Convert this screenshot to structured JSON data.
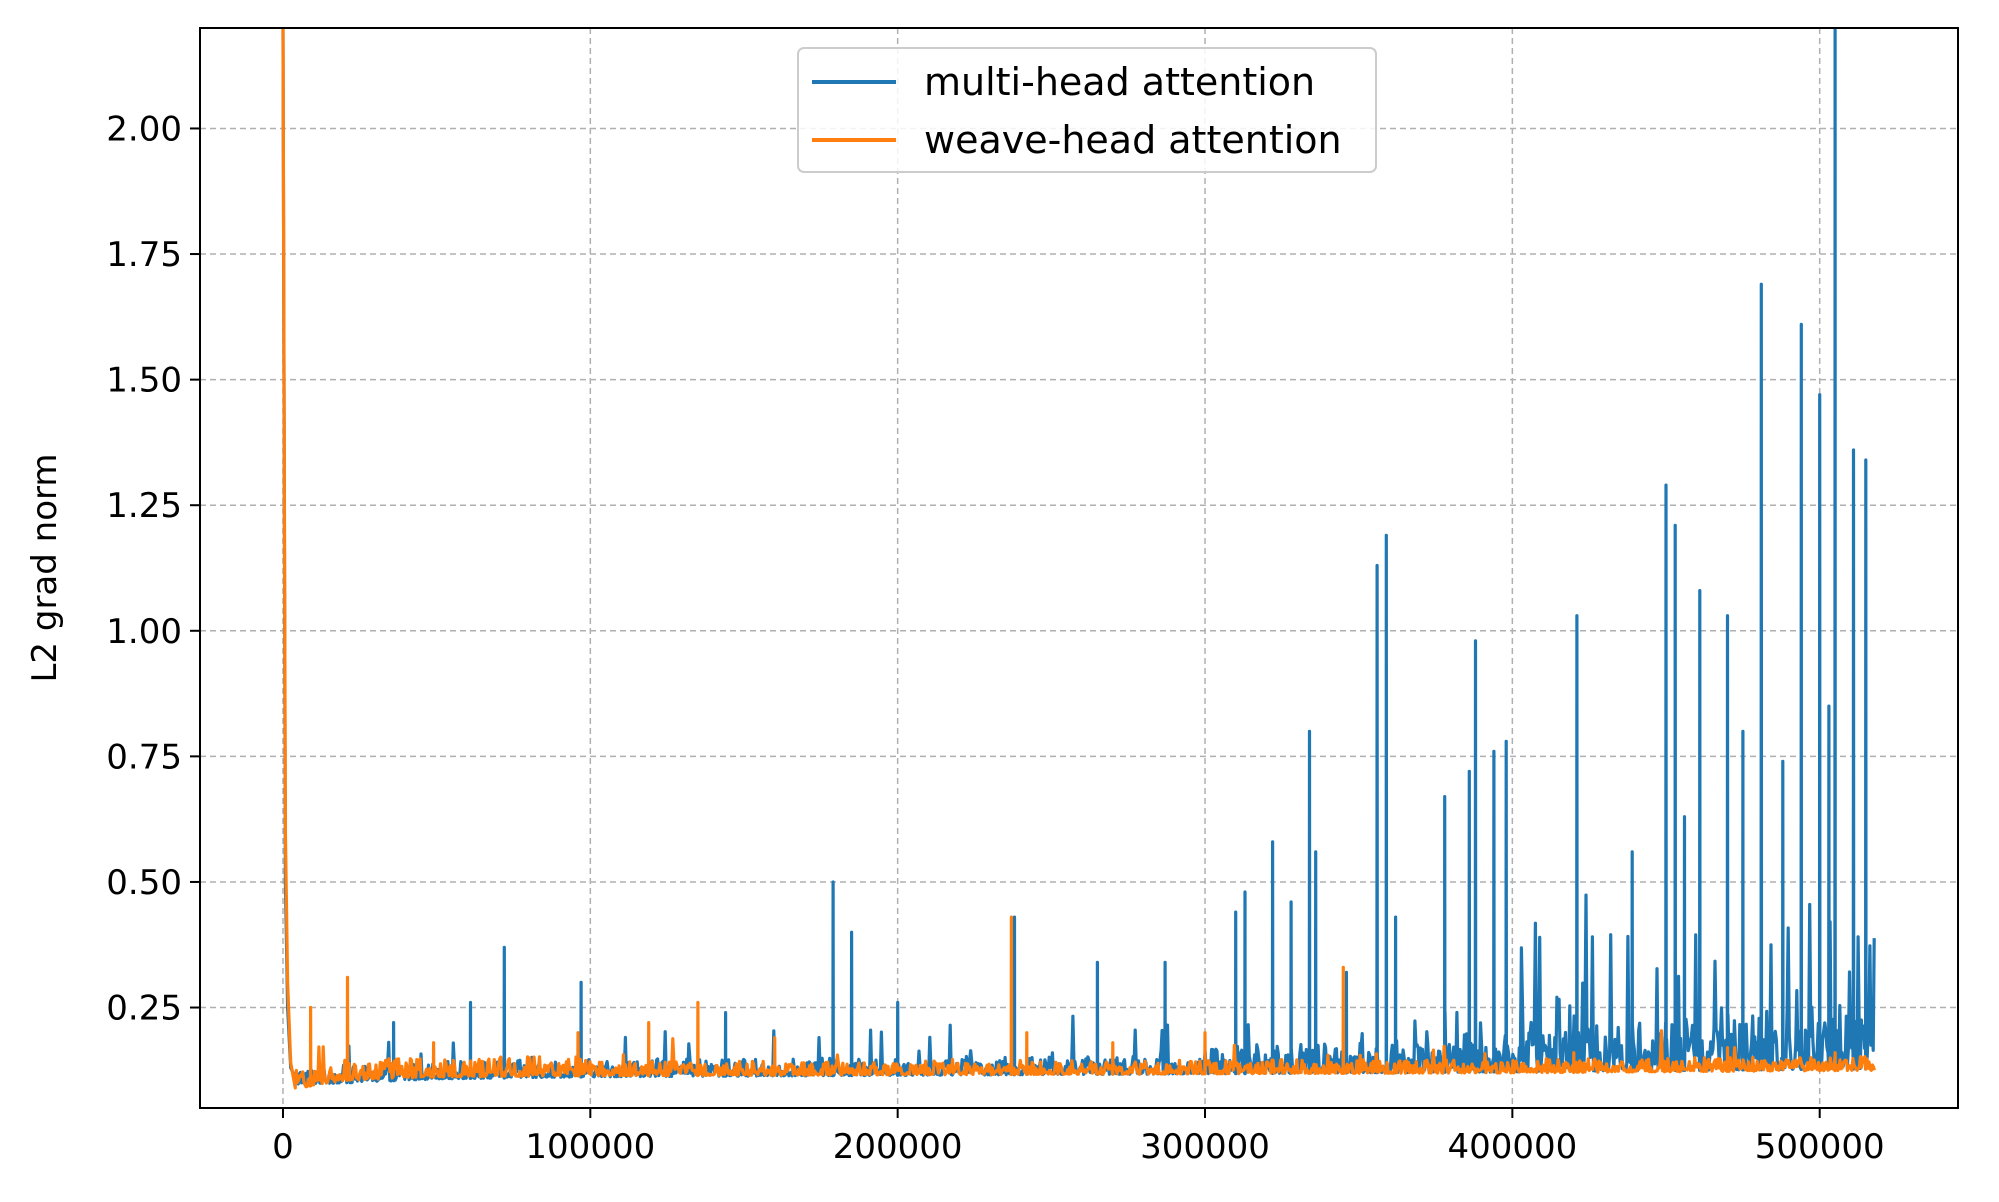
{
  "chart_data": {
    "type": "line",
    "title": "",
    "xlabel": "",
    "ylabel": "L2 grad norm",
    "xlim": [
      -27000,
      545000
    ],
    "ylim": [
      0.05,
      2.2
    ],
    "x_ticks": [
      0,
      100000,
      200000,
      300000,
      400000,
      500000
    ],
    "x_tick_labels": [
      "0",
      "100000",
      "200000",
      "300000",
      "400000",
      "500000"
    ],
    "y_ticks": [
      0.25,
      0.5,
      0.75,
      1.0,
      1.25,
      1.5,
      1.75,
      2.0
    ],
    "y_tick_labels": [
      "0.25",
      "0.50",
      "0.75",
      "1.00",
      "1.25",
      "1.50",
      "1.75",
      "2.00"
    ],
    "grid": true,
    "legend_position": "top-center",
    "series": [
      {
        "name": "multi-head attention",
        "color": "#1f77b4",
        "x_end": 518000,
        "initial": [
          [
            0,
            2.2
          ],
          [
            800,
            0.5
          ],
          [
            1500,
            0.25
          ],
          [
            2500,
            0.13
          ],
          [
            5000,
            0.098
          ]
        ],
        "baseline": [
          [
            5000,
            0.098
          ],
          [
            20000,
            0.1
          ],
          [
            50000,
            0.108
          ],
          [
            100000,
            0.112
          ],
          [
            200000,
            0.115
          ],
          [
            300000,
            0.118
          ],
          [
            400000,
            0.122
          ],
          [
            518000,
            0.128
          ]
        ],
        "spikes": [
          [
            36000,
            0.22
          ],
          [
            61000,
            0.26
          ],
          [
            72000,
            0.37
          ],
          [
            97000,
            0.3
          ],
          [
            144000,
            0.24
          ],
          [
            179000,
            0.5
          ],
          [
            185000,
            0.4
          ],
          [
            200000,
            0.26
          ],
          [
            238000,
            0.43
          ],
          [
            265000,
            0.34
          ],
          [
            287000,
            0.34
          ],
          [
            310000,
            0.44
          ],
          [
            313000,
            0.48
          ],
          [
            322000,
            0.58
          ],
          [
            328000,
            0.46
          ],
          [
            334000,
            0.8
          ],
          [
            336000,
            0.56
          ],
          [
            346000,
            0.32
          ],
          [
            356000,
            1.13
          ],
          [
            359000,
            1.19
          ],
          [
            362000,
            0.43
          ],
          [
            378000,
            0.67
          ],
          [
            386000,
            0.72
          ],
          [
            388000,
            0.98
          ],
          [
            394000,
            0.76
          ],
          [
            398000,
            0.78
          ],
          [
            421000,
            1.03
          ],
          [
            439000,
            0.56
          ],
          [
            450000,
            1.29
          ],
          [
            453000,
            1.21
          ],
          [
            456000,
            0.63
          ],
          [
            461000,
            1.08
          ],
          [
            470000,
            1.03
          ],
          [
            475000,
            0.8
          ],
          [
            481000,
            1.69
          ],
          [
            488000,
            0.74
          ],
          [
            494000,
            1.61
          ],
          [
            500000,
            1.47
          ],
          [
            503000,
            0.85
          ],
          [
            505000,
            2.2
          ],
          [
            511000,
            1.36
          ],
          [
            515000,
            1.34
          ],
          [
            518000,
            0.51
          ]
        ]
      },
      {
        "name": "weave-head attention",
        "color": "#ff7f0e",
        "x_end": 518000,
        "initial": [
          [
            0,
            2.2
          ],
          [
            800,
            0.6
          ],
          [
            1500,
            0.3
          ],
          [
            2500,
            0.14
          ],
          [
            4000,
            0.09
          ]
        ],
        "baseline": [
          [
            4000,
            0.088
          ],
          [
            10000,
            0.095
          ],
          [
            20000,
            0.105
          ],
          [
            50000,
            0.112
          ],
          [
            100000,
            0.114
          ],
          [
            200000,
            0.116
          ],
          [
            300000,
            0.118
          ],
          [
            400000,
            0.12
          ],
          [
            518000,
            0.125
          ]
        ],
        "spikes": [
          [
            9000,
            0.25
          ],
          [
            21000,
            0.31
          ],
          [
            49000,
            0.18
          ],
          [
            96000,
            0.2
          ],
          [
            119000,
            0.22
          ],
          [
            135000,
            0.26
          ],
          [
            160000,
            0.19
          ],
          [
            237000,
            0.43
          ],
          [
            242000,
            0.2
          ],
          [
            270000,
            0.18
          ],
          [
            300000,
            0.2
          ],
          [
            345000,
            0.33
          ],
          [
            420000,
            0.16
          ],
          [
            470000,
            0.17
          ],
          [
            505000,
            0.16
          ]
        ]
      }
    ]
  }
}
